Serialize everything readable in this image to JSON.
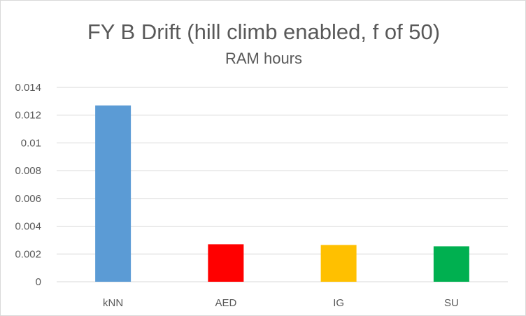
{
  "chart_data": {
    "type": "bar",
    "title": "FY B Drift (hill climb enabled, f of 50)",
    "subtitle": "RAM hours",
    "xlabel": "",
    "ylabel": "",
    "categories": [
      "kNN",
      "AED",
      "IG",
      "SU"
    ],
    "values": [
      0.0127,
      0.0027,
      0.00265,
      0.00255
    ],
    "colors": [
      "#5b9bd5",
      "#ff0000",
      "#ffc000",
      "#00b050"
    ],
    "ylim": [
      0,
      0.014
    ],
    "yticks": [
      0,
      0.002,
      0.004,
      0.006,
      0.008,
      0.01,
      0.012,
      0.014
    ],
    "ytick_labels": [
      "0",
      "0.002",
      "0.004",
      "0.006",
      "0.008",
      "0.01",
      "0.012",
      "0.014"
    ],
    "grid": true,
    "legend": "none"
  }
}
